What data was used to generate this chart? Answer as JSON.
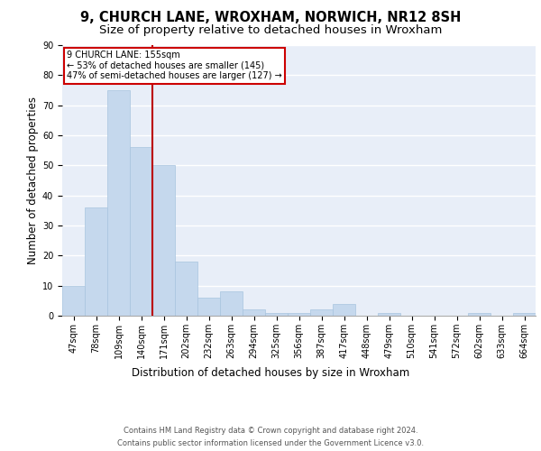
{
  "title1": "9, CHURCH LANE, WROXHAM, NORWICH, NR12 8SH",
  "title2": "Size of property relative to detached houses in Wroxham",
  "xlabel": "Distribution of detached houses by size in Wroxham",
  "ylabel": "Number of detached properties",
  "categories": [
    "47sqm",
    "78sqm",
    "109sqm",
    "140sqm",
    "171sqm",
    "202sqm",
    "232sqm",
    "263sqm",
    "294sqm",
    "325sqm",
    "356sqm",
    "387sqm",
    "417sqm",
    "448sqm",
    "479sqm",
    "510sqm",
    "541sqm",
    "572sqm",
    "602sqm",
    "633sqm",
    "664sqm"
  ],
  "values": [
    10,
    36,
    75,
    56,
    50,
    18,
    6,
    8,
    2,
    1,
    1,
    2,
    4,
    0,
    1,
    0,
    0,
    0,
    1,
    0,
    1
  ],
  "bar_color": "#c5d8ed",
  "bar_edge_color": "#a8c4de",
  "bg_color": "#e8eef8",
  "grid_color": "#ffffff",
  "vline_x": 3.5,
  "vline_color": "#bb0000",
  "annotation_text": "9 CHURCH LANE: 155sqm\n← 53% of detached houses are smaller (145)\n47% of semi-detached houses are larger (127) →",
  "annotation_box_color": "#cc0000",
  "ylim": [
    0,
    90
  ],
  "yticks": [
    0,
    10,
    20,
    30,
    40,
    50,
    60,
    70,
    80,
    90
  ],
  "footnote1": "Contains HM Land Registry data © Crown copyright and database right 2024.",
  "footnote2": "Contains public sector information licensed under the Government Licence v3.0.",
  "title1_fontsize": 10.5,
  "title2_fontsize": 9.5,
  "xlabel_fontsize": 8.5,
  "ylabel_fontsize": 8.5,
  "tick_fontsize": 7,
  "annot_fontsize": 7
}
